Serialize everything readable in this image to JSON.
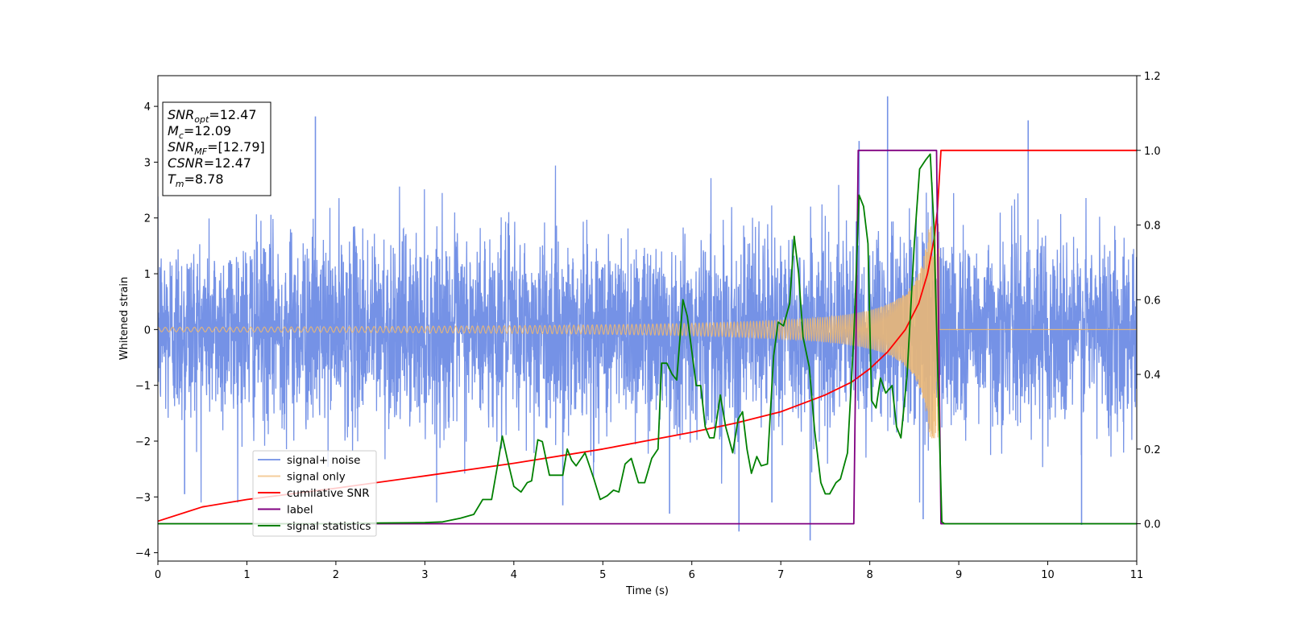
{
  "chart_data": {
    "type": "line",
    "xlabel": "Time (s)",
    "ylabel": "Whitened strain",
    "xlim": [
      0,
      11
    ],
    "ylim": [
      -4.15,
      4.55
    ],
    "y2lim": [
      -0.1,
      1.2
    ],
    "x_ticks": [
      0,
      1,
      2,
      3,
      4,
      5,
      6,
      7,
      8,
      9,
      10,
      11
    ],
    "y_ticks": [
      -4,
      -3,
      -2,
      -1,
      0,
      1,
      2,
      3,
      4
    ],
    "y2_ticks": [
      0.0,
      0.2,
      0.4,
      0.6,
      0.8,
      1.0,
      1.2
    ],
    "grid": false,
    "legend_position": "lower-left",
    "info_box": {
      "position": "top-left",
      "lines": [
        {
          "base": "SNR",
          "sub": "opt",
          "rest": "=12.47"
        },
        {
          "base": "M",
          "sub": "c",
          "rest": "=12.09"
        },
        {
          "base": "SNR",
          "sub": "MF",
          "rest": "=[12.79]"
        },
        {
          "base": "CSNR",
          "sub": "",
          "rest": "=12.47"
        },
        {
          "base": "T",
          "sub": "m",
          "rest": "=8.78"
        }
      ]
    },
    "series": [
      {
        "name": "signal+ noise",
        "axis": "left",
        "color": "#7592e6",
        "kind": "noise",
        "noise_sigma": 0.85,
        "noise_clip": [
          -3.1,
          3.1
        ],
        "spikes": [
          [
            1.77,
            3.82
          ],
          [
            8.2,
            4.18
          ],
          [
            9.78,
            3.75
          ],
          [
            7.88,
            3.38
          ],
          [
            7.33,
            -3.78
          ],
          [
            6.53,
            -3.62
          ],
          [
            0.3,
            -2.95
          ],
          [
            10.38,
            -3.5
          ],
          [
            8.6,
            -3.4
          ],
          [
            6.9,
            -3.1
          ],
          [
            4.55,
            -3.15
          ],
          [
            5.75,
            -3.3
          ]
        ]
      },
      {
        "name": "signal only",
        "axis": "left",
        "color": "#f0b870",
        "kind": "chirp",
        "merger_time": 8.78,
        "base_amplitude": 0.04,
        "peak_amplitude": 1.95,
        "base_frequency": 12,
        "peak_frequency": 150
      },
      {
        "name": "cumilative SNR",
        "axis": "right",
        "color": "#ff0000",
        "points": [
          [
            0,
            0.007
          ],
          [
            0.5,
            0.045
          ],
          [
            1,
            0.065
          ],
          [
            2,
            0.095
          ],
          [
            3,
            0.128
          ],
          [
            4,
            0.162
          ],
          [
            5,
            0.2
          ],
          [
            6,
            0.245
          ],
          [
            6.5,
            0.27
          ],
          [
            7,
            0.3
          ],
          [
            7.5,
            0.345
          ],
          [
            7.8,
            0.38
          ],
          [
            8.0,
            0.415
          ],
          [
            8.2,
            0.46
          ],
          [
            8.4,
            0.52
          ],
          [
            8.55,
            0.59
          ],
          [
            8.65,
            0.67
          ],
          [
            8.72,
            0.76
          ],
          [
            8.76,
            0.84
          ],
          [
            8.78,
            0.92
          ],
          [
            8.8,
            1.0
          ],
          [
            11,
            1.0
          ]
        ]
      },
      {
        "name": "label",
        "axis": "right",
        "color": "#800080",
        "points": [
          [
            0,
            0
          ],
          [
            7.82,
            0
          ],
          [
            7.87,
            1.0
          ],
          [
            8.75,
            1.0
          ],
          [
            8.8,
            0
          ],
          [
            11,
            0
          ]
        ]
      },
      {
        "name": "signal statistics",
        "axis": "right",
        "color": "#008000",
        "points": [
          [
            0,
            0
          ],
          [
            2.0,
            0.0
          ],
          [
            2.5,
            0.002
          ],
          [
            3.0,
            0.003
          ],
          [
            3.2,
            0.005
          ],
          [
            3.4,
            0.015
          ],
          [
            3.55,
            0.025
          ],
          [
            3.65,
            0.065
          ],
          [
            3.75,
            0.065
          ],
          [
            3.82,
            0.16
          ],
          [
            3.87,
            0.235
          ],
          [
            3.93,
            0.17
          ],
          [
            4.0,
            0.1
          ],
          [
            4.08,
            0.085
          ],
          [
            4.15,
            0.11
          ],
          [
            4.2,
            0.115
          ],
          [
            4.27,
            0.225
          ],
          [
            4.32,
            0.22
          ],
          [
            4.4,
            0.13
          ],
          [
            4.5,
            0.13
          ],
          [
            4.55,
            0.13
          ],
          [
            4.6,
            0.2
          ],
          [
            4.65,
            0.17
          ],
          [
            4.7,
            0.155
          ],
          [
            4.8,
            0.19
          ],
          [
            4.9,
            0.12
          ],
          [
            4.97,
            0.065
          ],
          [
            5.05,
            0.075
          ],
          [
            5.12,
            0.09
          ],
          [
            5.18,
            0.085
          ],
          [
            5.25,
            0.16
          ],
          [
            5.32,
            0.175
          ],
          [
            5.4,
            0.11
          ],
          [
            5.47,
            0.11
          ],
          [
            5.55,
            0.175
          ],
          [
            5.62,
            0.2
          ],
          [
            5.66,
            0.43
          ],
          [
            5.72,
            0.43
          ],
          [
            5.78,
            0.4
          ],
          [
            5.83,
            0.385
          ],
          [
            5.9,
            0.6
          ],
          [
            5.95,
            0.555
          ],
          [
            6.05,
            0.37
          ],
          [
            6.1,
            0.37
          ],
          [
            6.15,
            0.26
          ],
          [
            6.2,
            0.23
          ],
          [
            6.25,
            0.23
          ],
          [
            6.32,
            0.345
          ],
          [
            6.38,
            0.26
          ],
          [
            6.46,
            0.19
          ],
          [
            6.52,
            0.28
          ],
          [
            6.57,
            0.3
          ],
          [
            6.62,
            0.2
          ],
          [
            6.67,
            0.135
          ],
          [
            6.73,
            0.18
          ],
          [
            6.78,
            0.155
          ],
          [
            6.85,
            0.16
          ],
          [
            6.92,
            0.45
          ],
          [
            6.97,
            0.54
          ],
          [
            7.03,
            0.53
          ],
          [
            7.1,
            0.59
          ],
          [
            7.15,
            0.77
          ],
          [
            7.2,
            0.67
          ],
          [
            7.25,
            0.5
          ],
          [
            7.32,
            0.42
          ],
          [
            7.38,
            0.25
          ],
          [
            7.45,
            0.11
          ],
          [
            7.5,
            0.08
          ],
          [
            7.55,
            0.08
          ],
          [
            7.62,
            0.11
          ],
          [
            7.67,
            0.12
          ],
          [
            7.75,
            0.19
          ],
          [
            7.82,
            0.5
          ],
          [
            7.88,
            0.88
          ],
          [
            7.93,
            0.85
          ],
          [
            7.98,
            0.75
          ],
          [
            8.02,
            0.33
          ],
          [
            8.07,
            0.31
          ],
          [
            8.12,
            0.39
          ],
          [
            8.18,
            0.35
          ],
          [
            8.25,
            0.37
          ],
          [
            8.3,
            0.26
          ],
          [
            8.35,
            0.23
          ],
          [
            8.42,
            0.4
          ],
          [
            8.5,
            0.75
          ],
          [
            8.56,
            0.95
          ],
          [
            8.63,
            0.975
          ],
          [
            8.68,
            0.99
          ],
          [
            8.72,
            0.8
          ],
          [
            8.77,
            0.35
          ],
          [
            8.81,
            0.005
          ],
          [
            8.84,
            0.0
          ],
          [
            11,
            0.0
          ]
        ]
      }
    ]
  }
}
